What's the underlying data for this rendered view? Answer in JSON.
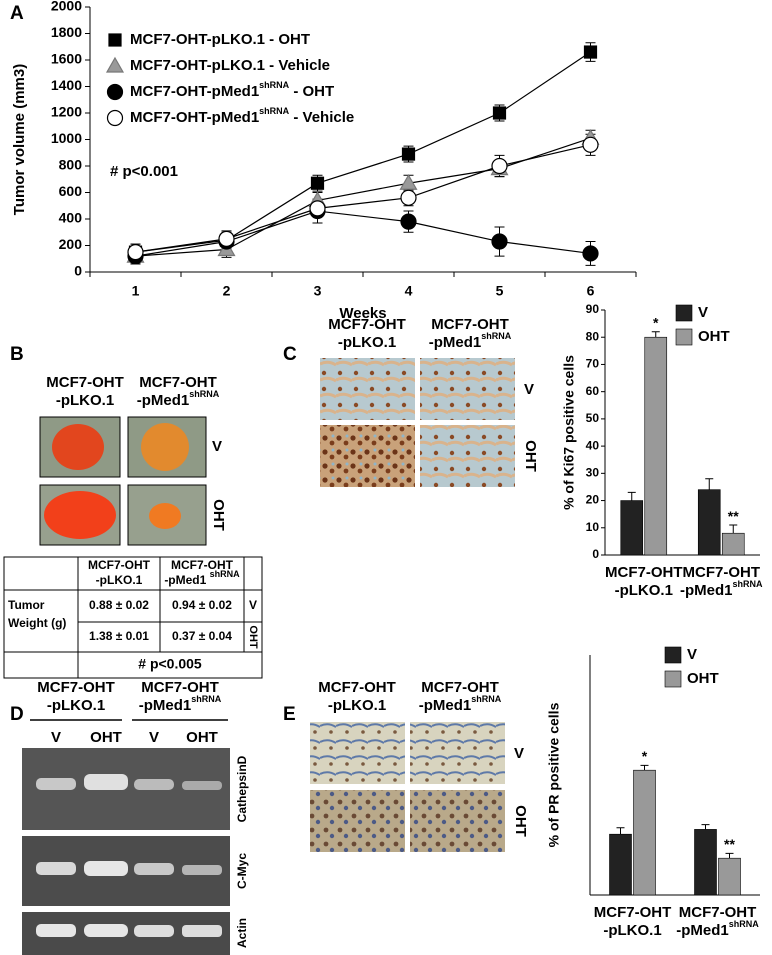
{
  "panel_labels": [
    "A",
    "B",
    "C",
    "D",
    "E"
  ],
  "chart_data": [
    {
      "type": "line",
      "categories": [
        "1",
        "2",
        "3",
        "4",
        "5",
        "6"
      ],
      "xlabel": "Weeks",
      "ylabel": "Tumor volume (mm3)",
      "ylim": [
        0,
        2000
      ],
      "yticks": [
        0,
        200,
        400,
        600,
        800,
        1000,
        1200,
        1400,
        1600,
        1800,
        2000
      ],
      "annotation": "# p<0.001",
      "series": [
        {
          "name": "MCF7-OHT-pLKO.1 - OHT",
          "marker": "square",
          "color": "#000000",
          "values": [
            150,
            240,
            670,
            890,
            1200,
            1660
          ],
          "errors": [
            60,
            60,
            60,
            60,
            60,
            70
          ]
        },
        {
          "name": "MCF7-OHT-pLKO.1 - Vehicle",
          "marker": "triangle",
          "color": "#999999",
          "values": [
            120,
            170,
            540,
            670,
            780,
            1010
          ],
          "errors": [
            50,
            60,
            60,
            60,
            60,
            60
          ]
        },
        {
          "name": "MCF7-OHT-pMed1",
          "name_sup": "shRNA",
          "name_suffix": " - OHT",
          "marker": "circle",
          "color": "#000000",
          "values": [
            120,
            230,
            460,
            380,
            230,
            140
          ],
          "errors": [
            60,
            60,
            90,
            80,
            110,
            90
          ]
        },
        {
          "name": "MCF7-OHT-pMed1",
          "name_sup": "shRNA",
          "name_suffix": " - Vehicle",
          "marker": "circle",
          "color": "#ffffff",
          "values": [
            150,
            250,
            480,
            560,
            800,
            960
          ],
          "errors": [
            60,
            60,
            60,
            60,
            80,
            80
          ]
        }
      ]
    },
    {
      "type": "bar",
      "ylabel": "% of Ki67 positive cells",
      "ylim": [
        0,
        90
      ],
      "yticks": [
        0,
        10,
        20,
        30,
        40,
        50,
        60,
        70,
        80,
        90
      ],
      "categories": [
        [
          "MCF7-OHT",
          "-pLKO.1"
        ],
        [
          "MCF7-OHT",
          "-pMed1",
          "shRNA"
        ]
      ],
      "series": [
        {
          "name": "V",
          "color": "#222222",
          "values": [
            20,
            24
          ],
          "errors": [
            3,
            4
          ]
        },
        {
          "name": "OHT",
          "color": "#999999",
          "values": [
            80,
            8
          ],
          "errors": [
            2,
            3
          ]
        }
      ],
      "annotations": [
        "*",
        "**"
      ]
    },
    {
      "type": "bar",
      "ylabel": "% of PR positive cells",
      "ylim": [
        0,
        150
      ],
      "categories": [
        [
          "MCF7-OHT",
          "-pLKO.1"
        ],
        [
          "MCF7-OHT",
          "-pMed1",
          "shRNA"
        ]
      ],
      "series": [
        {
          "name": "V",
          "color": "#222222",
          "values": [
            38,
            41
          ],
          "errors": [
            4,
            3
          ]
        },
        {
          "name": "OHT",
          "color": "#999999",
          "values": [
            78,
            23
          ],
          "errors": [
            3,
            3
          ]
        }
      ],
      "annotations": [
        "*",
        "**"
      ]
    }
  ],
  "tumor_photos": {
    "columns": [
      [
        "MCF7-OHT",
        "-pLKO.1"
      ],
      [
        "MCF7-OHT",
        "-pMed1",
        "shRNA"
      ]
    ],
    "rows": [
      "V",
      "OHT"
    ]
  },
  "weight_table": {
    "columns": [
      [
        "MCF7-OHT",
        "-pLKO.1"
      ],
      [
        "MCF7-OHT",
        "-pMed1 ",
        "shRNA"
      ]
    ],
    "row_header": [
      "Tumor",
      "Weight (g)"
    ],
    "rows": [
      [
        "0.88 ± 0.02",
        "0.94 ± 0.02",
        "V"
      ],
      [
        "1.38 ± 0.01",
        "0.37 ± 0.04",
        "OHT"
      ]
    ],
    "footer": "# p<0.005"
  },
  "ki67_images": {
    "columns": [
      [
        "MCF7-OHT",
        "-pLKO.1"
      ],
      [
        "MCF7-OHT",
        "-pMed1",
        "shRNA"
      ]
    ],
    "rows": [
      "V",
      "OHT"
    ]
  },
  "gel": {
    "columns": [
      [
        "MCF7-OHT",
        "-pLKO.1"
      ],
      [
        "MCF7-OHT",
        "-pMed1",
        "shRNA"
      ]
    ],
    "lanes": [
      "V",
      "OHT",
      "V",
      "OHT"
    ],
    "bands": [
      "CathepsinD",
      "C-Myc",
      "Actin"
    ]
  },
  "pr_images": {
    "columns": [
      [
        "MCF7-OHT",
        "-pLKO.1"
      ],
      [
        "MCF7-OHT",
        "-pMed1",
        "shRNA"
      ]
    ],
    "rows": [
      "V",
      "OHT"
    ]
  }
}
